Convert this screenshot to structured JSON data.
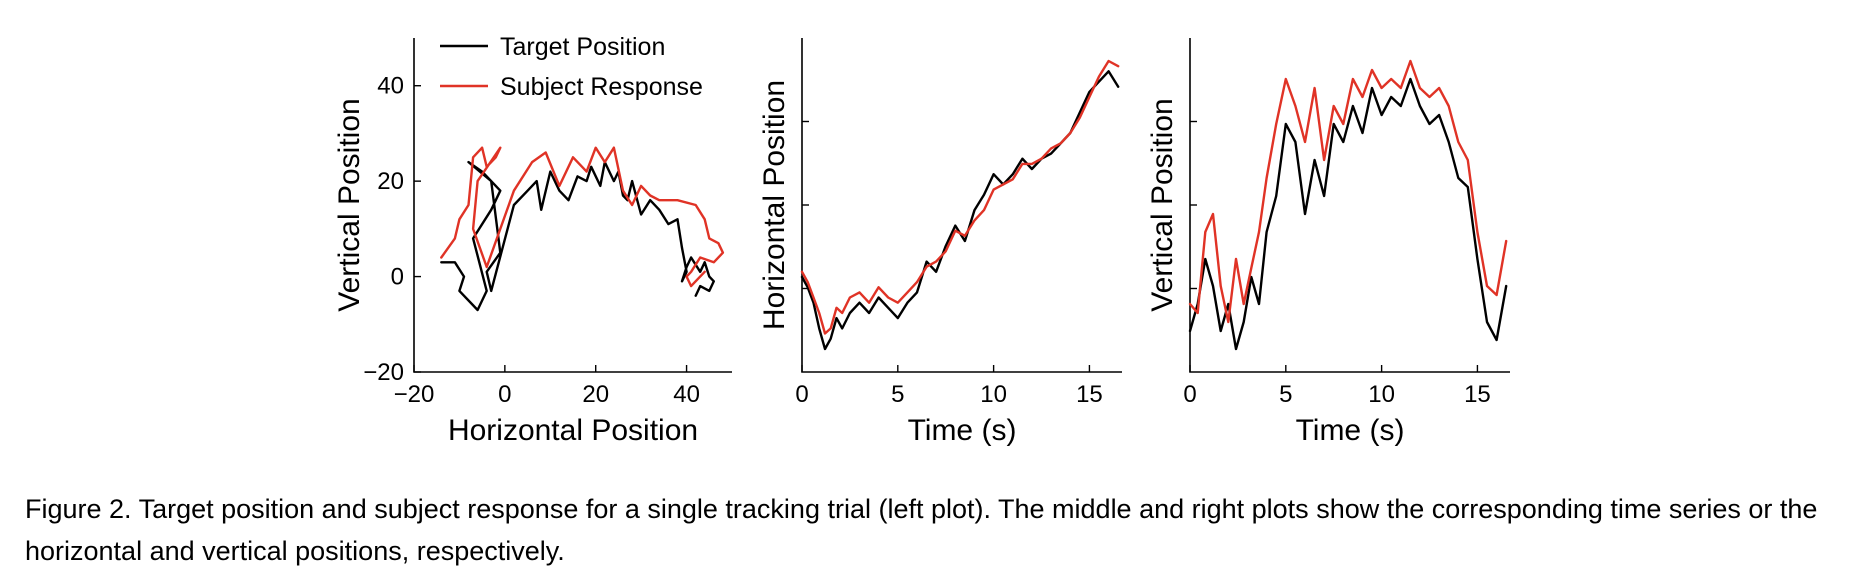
{
  "colors": {
    "target": "#000000",
    "response": "#e03326"
  },
  "caption": "Figure 2. Target position and subject response for a single tracking trial (left plot). The middle and right plots show the corresponding time series or the horizontal and vertical positions, respectively.",
  "chart_data": [
    {
      "type": "line",
      "xlabel": "Horizontal Position",
      "ylabel": "Vertical Position",
      "xlim": [
        -20,
        50
      ],
      "ylim": [
        -20,
        50
      ],
      "xticks": [
        -20,
        0,
        20,
        40
      ],
      "xtick_labels": [
        "−20",
        "0",
        "20",
        "40"
      ],
      "yticks": [
        -20,
        0,
        20,
        40
      ],
      "ytick_labels": [
        "−20",
        "0",
        "20",
        "40"
      ],
      "legend": {
        "placement": "top-left",
        "entries": [
          "Target Position",
          "Subject Response"
        ]
      },
      "series": [
        {
          "name": "Target Position",
          "x": [
            -14,
            -11,
            -9,
            -10,
            -6,
            -4,
            -7,
            -3,
            -1,
            -5,
            -8,
            -3,
            -1,
            -4,
            -3,
            2,
            5,
            7,
            8,
            10,
            12,
            14,
            16,
            18,
            19,
            21,
            22,
            24,
            25,
            26,
            27,
            28,
            30,
            32,
            34,
            36,
            38,
            39,
            40,
            39,
            40,
            41,
            43,
            44,
            45,
            46,
            45,
            43,
            42
          ],
          "y": [
            3,
            3,
            0,
            -3,
            -7,
            -3,
            8,
            14,
            18,
            22,
            24,
            20,
            5,
            1,
            -3,
            15,
            18,
            20,
            14,
            22,
            18,
            16,
            21,
            20,
            23,
            19,
            24,
            20,
            22,
            17,
            16,
            20,
            13,
            16,
            14,
            11,
            12,
            6,
            1,
            -1,
            2,
            4,
            1,
            3,
            0,
            -1,
            -3,
            -2,
            -4
          ]
        },
        {
          "name": "Subject Response",
          "x": [
            -14,
            -11,
            -10,
            -8,
            -7,
            -5,
            -4,
            -2,
            -1,
            -6,
            -7,
            -4,
            2,
            6,
            9,
            12,
            15,
            18,
            20,
            22,
            24,
            26,
            28,
            30,
            32,
            34,
            38,
            42,
            44,
            45,
            47,
            48,
            46,
            43,
            41,
            40,
            41,
            44
          ],
          "y": [
            4,
            8,
            12,
            15,
            25,
            27,
            23,
            25,
            27,
            20,
            10,
            2,
            18,
            24,
            26,
            19,
            25,
            22,
            27,
            24,
            27,
            18,
            15,
            19,
            17,
            16,
            16,
            15,
            12,
            8,
            7,
            5,
            3,
            4,
            1,
            0,
            -2,
            1
          ]
        }
      ]
    },
    {
      "type": "line",
      "xlabel": "Time (s)",
      "ylabel": "Horizontal Position",
      "xlim": [
        0,
        16.7
      ],
      "xticks": [
        0,
        5,
        10,
        15
      ],
      "xtick_labels": [
        "0",
        "5",
        "10",
        "15"
      ],
      "series": [
        {
          "name": "Target Position",
          "x": [
            0,
            0.3,
            0.6,
            0.9,
            1.2,
            1.5,
            1.8,
            2.1,
            2.5,
            3.0,
            3.5,
            4.0,
            4.5,
            5.0,
            5.5,
            6.0,
            6.5,
            7.0,
            7.5,
            8.0,
            8.5,
            9.0,
            9.5,
            10.0,
            10.5,
            11.0,
            11.5,
            12.0,
            12.5,
            13.0,
            13.5,
            14.0,
            14.5,
            15.0,
            15.5,
            16.0,
            16.5
          ],
          "y": [
            2,
            0,
            -3,
            -8,
            -12,
            -10,
            -6,
            -8,
            -5,
            -3,
            -5,
            -2,
            -4,
            -6,
            -3,
            -1,
            5,
            3,
            8,
            12,
            9,
            15,
            18,
            22,
            20,
            22,
            25,
            23,
            25,
            26,
            28,
            30,
            34,
            38,
            40,
            42,
            39
          ]
        },
        {
          "name": "Subject Response",
          "x": [
            0,
            0.3,
            0.6,
            0.9,
            1.2,
            1.5,
            1.8,
            2.1,
            2.5,
            3.0,
            3.5,
            4.0,
            4.5,
            5.0,
            5.5,
            6.0,
            6.5,
            7.0,
            7.5,
            8.0,
            8.5,
            9.0,
            9.5,
            10.0,
            10.5,
            11.0,
            11.5,
            12.0,
            12.5,
            13.0,
            13.5,
            14.0,
            14.5,
            15.0,
            15.5,
            16.0,
            16.5
          ],
          "y": [
            3,
            1,
            -2,
            -5,
            -9,
            -8,
            -4,
            -5,
            -2,
            -1,
            -3,
            0,
            -2,
            -3,
            -1,
            1,
            4,
            5,
            7,
            11,
            10,
            13,
            15,
            19,
            20,
            21,
            24,
            24,
            25,
            27,
            28,
            30,
            33,
            37,
            41,
            44,
            43
          ]
        }
      ]
    },
    {
      "type": "line",
      "xlabel": "Time (s)",
      "ylabel": "Vertical Position",
      "xlim": [
        0,
        16.7
      ],
      "xticks": [
        0,
        5,
        10,
        15
      ],
      "xtick_labels": [
        "0",
        "5",
        "10",
        "15"
      ],
      "series": [
        {
          "name": "Target Position",
          "x": [
            0,
            0.4,
            0.8,
            1.2,
            1.6,
            2.0,
            2.4,
            2.8,
            3.2,
            3.6,
            4.0,
            4.5,
            5.0,
            5.5,
            6.0,
            6.5,
            7.0,
            7.5,
            8.0,
            8.5,
            9.0,
            9.5,
            10.0,
            10.5,
            11.0,
            11.5,
            12.0,
            12.5,
            13.0,
            13.5,
            14.0,
            14.5,
            15.0,
            15.5,
            16.0,
            16.5
          ],
          "y": [
            -3,
            0,
            5,
            2,
            -3,
            0,
            -5,
            -2,
            3,
            0,
            8,
            12,
            20,
            18,
            10,
            16,
            12,
            20,
            18,
            22,
            19,
            24,
            21,
            23,
            22,
            25,
            22,
            20,
            21,
            18,
            14,
            13,
            5,
            -2,
            -4,
            2
          ]
        },
        {
          "name": "Subject Response",
          "x": [
            0,
            0.4,
            0.8,
            1.2,
            1.6,
            2.0,
            2.4,
            2.8,
            3.2,
            3.6,
            4.0,
            4.5,
            5.0,
            5.5,
            6.0,
            6.5,
            7.0,
            7.5,
            8.0,
            8.5,
            9.0,
            9.5,
            10.0,
            10.5,
            11.0,
            11.5,
            12.0,
            12.5,
            13.0,
            13.5,
            14.0,
            14.5,
            15.0,
            15.5,
            16.0,
            16.5
          ],
          "y": [
            0,
            -1,
            8,
            10,
            2,
            -2,
            5,
            0,
            4,
            8,
            14,
            20,
            25,
            22,
            18,
            24,
            16,
            22,
            20,
            25,
            23,
            26,
            24,
            25,
            24,
            27,
            24,
            23,
            24,
            22,
            18,
            16,
            8,
            2,
            1,
            7
          ]
        }
      ]
    }
  ]
}
